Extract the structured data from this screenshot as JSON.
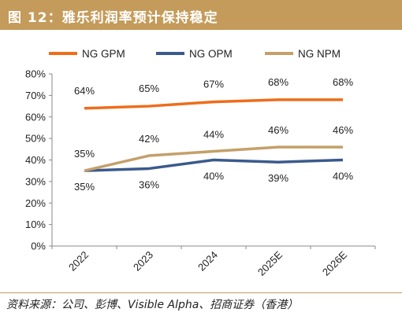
{
  "header": {
    "title": "图 12：雅乐利润率预计保持稳定"
  },
  "footer": {
    "source": "资料来源：公司、彭博、Visible Alpha、招商证券（香港）"
  },
  "chart_data": {
    "type": "line",
    "categories": [
      "2022",
      "2023",
      "2024",
      "2025E",
      "2026E"
    ],
    "series": [
      {
        "name": "NG GPM",
        "values": [
          64,
          65,
          67,
          68,
          68
        ],
        "labels": [
          "64%",
          "65%",
          "67%",
          "68%",
          "68%"
        ],
        "color": "#ee6d1a"
      },
      {
        "name": "NG OPM",
        "values": [
          35,
          36,
          40,
          39,
          40
        ],
        "labels": [
          "35%",
          "36%",
          "40%",
          "39%",
          "40%"
        ],
        "color": "#3a5a8c"
      },
      {
        "name": "NG NPM",
        "values": [
          35,
          42,
          44,
          46,
          46
        ],
        "labels": [
          "35%",
          "42%",
          "44%",
          "46%",
          "46%"
        ],
        "color": "#c4a06a"
      }
    ],
    "y_ticks": [
      "0%",
      "10%",
      "20%",
      "30%",
      "40%",
      "50%",
      "60%",
      "70%",
      "80%"
    ],
    "ylim": [
      0,
      80
    ],
    "legend_position": "top",
    "grid": false
  }
}
